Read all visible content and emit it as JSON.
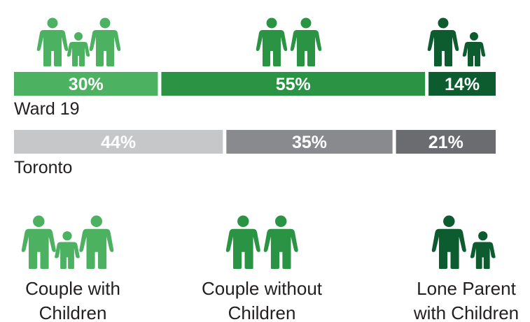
{
  "chart_data": {
    "type": "bar",
    "stacked": true,
    "orientation": "horizontal",
    "categories": [
      "Couple with Children",
      "Couple without Children",
      "Lone Parent with Children"
    ],
    "series": [
      {
        "name": "Ward 19",
        "values": [
          30,
          55,
          14
        ],
        "labels": [
          "30%",
          "55%",
          "14%"
        ],
        "colors": [
          "#4cb160",
          "#2a9444",
          "#0d5c2f"
        ]
      },
      {
        "name": "Toronto",
        "values": [
          44,
          35,
          21
        ],
        "labels": [
          "44%",
          "35%",
          "21%"
        ],
        "colors": [
          "#c6c7c9",
          "#898a8d",
          "#6b6c6f"
        ]
      }
    ],
    "category_labels": [
      [
        "Couple with",
        "Children"
      ],
      [
        "Couple without",
        "Children"
      ],
      [
        "Lone Parent",
        "with Children"
      ]
    ],
    "icon_colors": [
      "#4cb160",
      "#2a9444",
      "#0d5c2f"
    ],
    "icons": [
      "two-adults-one-child-icon",
      "two-adults-icon",
      "one-adult-one-child-icon"
    ]
  }
}
